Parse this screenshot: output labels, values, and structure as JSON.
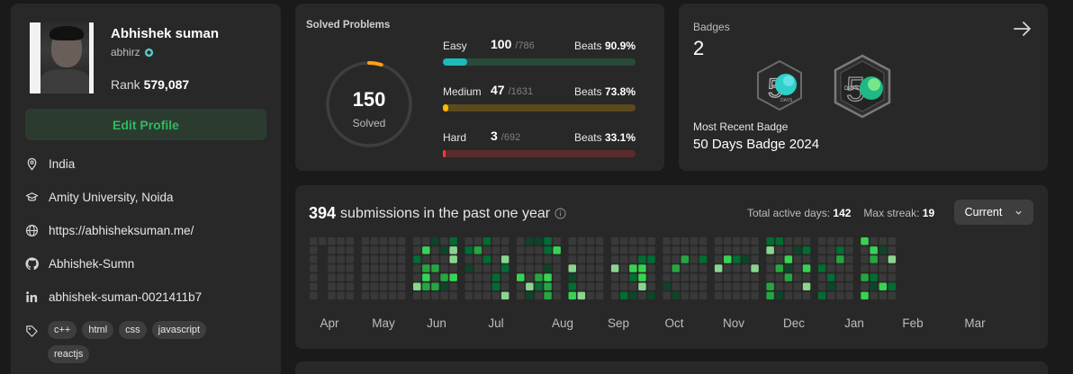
{
  "profile": {
    "name": "Abhishek suman",
    "username": "abhirz",
    "rank_label": "Rank",
    "rank_value": "579,087",
    "edit_label": "Edit Profile",
    "location": "India",
    "school": "Amity University, Noida",
    "website": "https://abhisheksuman.me/",
    "github": "Abhishek-Sumn",
    "linkedin": "abhishek-suman-0021411b7",
    "skills": [
      "c++",
      "html",
      "css",
      "javascript",
      "reactjs"
    ]
  },
  "solved": {
    "title": "Solved Problems",
    "total": "150",
    "total_label": "Solved",
    "difficulties": [
      {
        "name": "Easy",
        "solved": "100",
        "total": "/786",
        "beats_label": "Beats",
        "beats": "90.9%",
        "fraction": 0.127,
        "color": "#1cbaba",
        "track": "#2a4a3a"
      },
      {
        "name": "Medium",
        "solved": "47",
        "total": "/1631",
        "beats_label": "Beats",
        "beats": "73.8%",
        "fraction": 0.029,
        "color": "#ffb700",
        "track": "#5a4a1e"
      },
      {
        "name": "Hard",
        "solved": "3",
        "total": "/692",
        "beats_label": "Beats",
        "beats": "33.1%",
        "fraction": 0.004,
        "color": "#f63737",
        "track": "#5a2c2c"
      }
    ]
  },
  "badges": {
    "label": "Badges",
    "count": "2",
    "recent_label": "Most Recent Badge",
    "recent_name": "50 Days Badge 2024",
    "badge_text": "DAYS",
    "arrow_icon": "arrow-right-icon"
  },
  "heatmap": {
    "count": "394",
    "title": "submissions in the past one year",
    "active_label": "Total active days:",
    "active_value": "142",
    "streak_label": "Max streak:",
    "streak_value": "19",
    "select_value": "Current",
    "months": [
      "Apr",
      "May",
      "Jun",
      "Jul",
      "Aug",
      "Sep",
      "Oct",
      "Nov",
      "Dec",
      "Jan",
      "Feb",
      "Mar"
    ],
    "colors": [
      "#393939",
      "#0e4429",
      "#006d32",
      "#26a641",
      "#39d353",
      "#8bd58f"
    ]
  }
}
